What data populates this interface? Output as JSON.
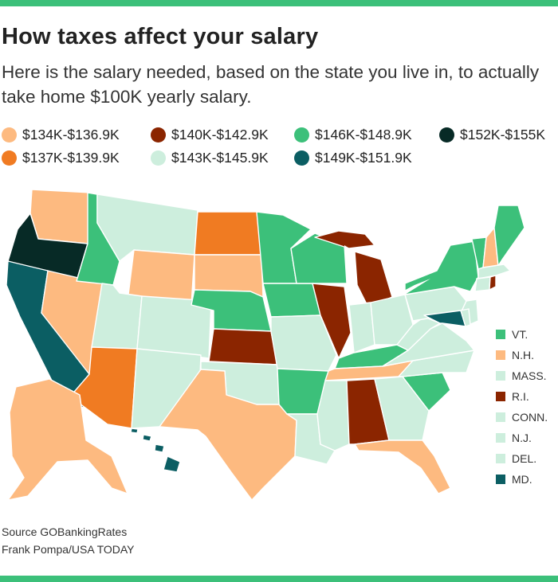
{
  "header": {
    "title": "How taxes affect your salary",
    "subtitle": "Here is the salary needed, based on the state you live in, to actually take home $100K yearly salary."
  },
  "colors": {
    "accent_bar": "#3cc07a",
    "tier_134": "#fdba80",
    "tier_137": "#f07b22",
    "tier_140": "#8b2500",
    "tier_143": "#cdeedd",
    "tier_146": "#3cc07a",
    "tier_149": "#0b5e63",
    "tier_152": "#072a26"
  },
  "legend": [
    {
      "label": "$134K-$136.9K",
      "color": "#fdba80"
    },
    {
      "label": "$140K-$142.9K",
      "color": "#8b2500"
    },
    {
      "label": "$146K-$148.9K",
      "color": "#3cc07a"
    },
    {
      "label": "$152K-$155K",
      "color": "#072a26"
    },
    {
      "label": "$137K-$139.9K",
      "color": "#f07b22"
    },
    {
      "label": "$143K-$145.9K",
      "color": "#cdeedd"
    },
    {
      "label": "$149K-$151.9K",
      "color": "#0b5e63"
    }
  ],
  "small_state_key": [
    {
      "label": "VT.",
      "color": "#3cc07a"
    },
    {
      "label": "N.H.",
      "color": "#fdba80"
    },
    {
      "label": "MASS.",
      "color": "#cdeedd"
    },
    {
      "label": "R.I.",
      "color": "#8b2500"
    },
    {
      "label": "CONN.",
      "color": "#cdeedd"
    },
    {
      "label": "N.J.",
      "color": "#cdeedd"
    },
    {
      "label": "DEL.",
      "color": "#cdeedd"
    },
    {
      "label": "MD.",
      "color": "#0b5e63"
    }
  ],
  "footer": {
    "source": "Source GOBankingRates",
    "credit": "Frank Pompa/USA TODAY"
  }
}
